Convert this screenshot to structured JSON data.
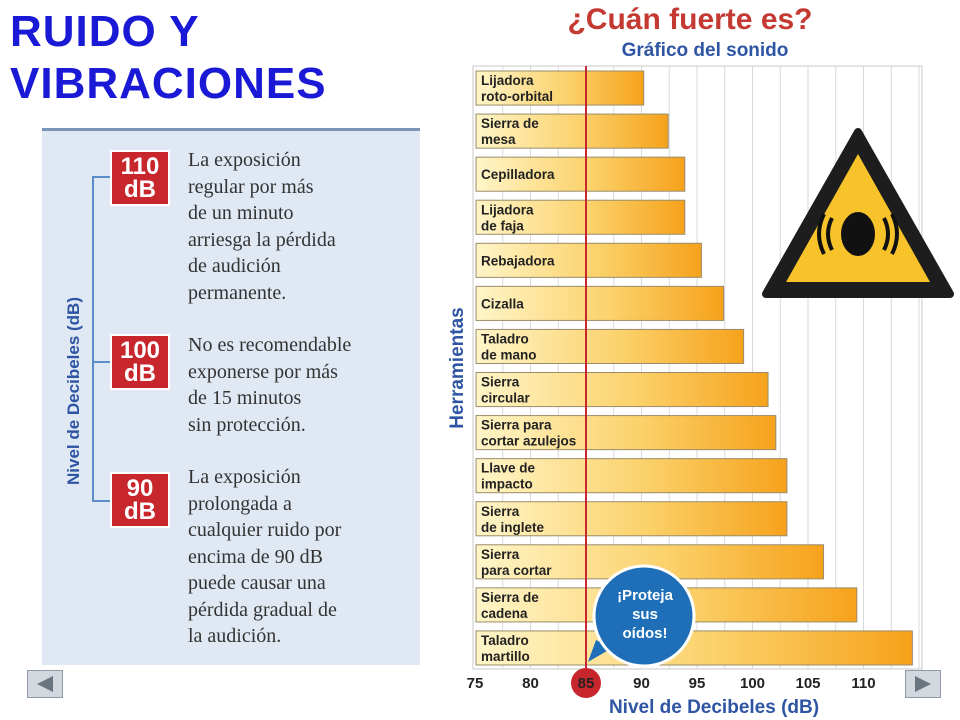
{
  "slide": {
    "title_line1": "RUIDO Y",
    "title_line2": "VIBRACIONES"
  },
  "panel": {
    "axis_label": "Nivel de Decibeles (dB)",
    "entries": [
      {
        "level": "110",
        "unit": "dB",
        "text": "La exposición\nregular por más\nde un minuto\narriesga la pérdida\nde audición\npermanente."
      },
      {
        "level": "100",
        "unit": "dB",
        "text": "No es recomendable\nexponerse por más\nde 15 minutos\nsin protección."
      },
      {
        "level": "90",
        "unit": "dB",
        "text": "La exposición\nprolongada a\ncualquier ruido por\nencima de 90 dB\npuede causar una\npérdida gradual de\nla audición."
      }
    ]
  },
  "navigation": {
    "prev_icon": "triangle-left-icon",
    "next_icon": "triangle-right-icon"
  },
  "warning_icon": "noise-warning-triangle-icon",
  "colors": {
    "bar_light": "#fff5c8",
    "bar_dark": "#f6a21b",
    "threshold_line": "#c7262c",
    "callout": "#1f6fb8",
    "title_blue": "#1a1ad6",
    "chart_title_red": "#c43a33",
    "warning_yellow": "#f7c22a"
  },
  "chart_data": {
    "type": "bar",
    "orientation": "horizontal",
    "title": "¿Cuán fuerte es?",
    "subtitle": "Gráfico del sonido",
    "xlabel": "Nivel de Decibeles (dB)",
    "ylabel": "Herramientas",
    "xlim": [
      75,
      115
    ],
    "xticks": [
      "75",
      "80",
      "85",
      "90",
      "95",
      "100",
      "105",
      "110"
    ],
    "highlight_tick": "85",
    "threshold": 85,
    "grid": true,
    "categories": [
      [
        "Lijadora",
        "roto-orbital"
      ],
      [
        "Sierra de",
        "mesa"
      ],
      [
        "Cepilladora"
      ],
      [
        "Lijadora",
        "de faja"
      ],
      [
        "Rebajadora"
      ],
      [
        "Cizalla"
      ],
      [
        "Taladro",
        "de mano"
      ],
      [
        "Sierra",
        "circular"
      ],
      [
        "Sierra para",
        "cortar azulejos"
      ],
      [
        "Llave de",
        "impacto"
      ],
      [
        "Sierra",
        "de inglete"
      ],
      [
        "Sierra",
        "para cortar"
      ],
      [
        "Sierra de",
        "cadena"
      ],
      [
        "Taladro",
        "martillo"
      ]
    ],
    "values": [
      90.2,
      92.4,
      93.9,
      93.9,
      95.4,
      97.4,
      99.2,
      101.4,
      102.1,
      103.1,
      103.1,
      106.4,
      109.4,
      114.4
    ],
    "annotation": [
      "¡Proteja",
      "sus",
      "oídos!"
    ]
  }
}
